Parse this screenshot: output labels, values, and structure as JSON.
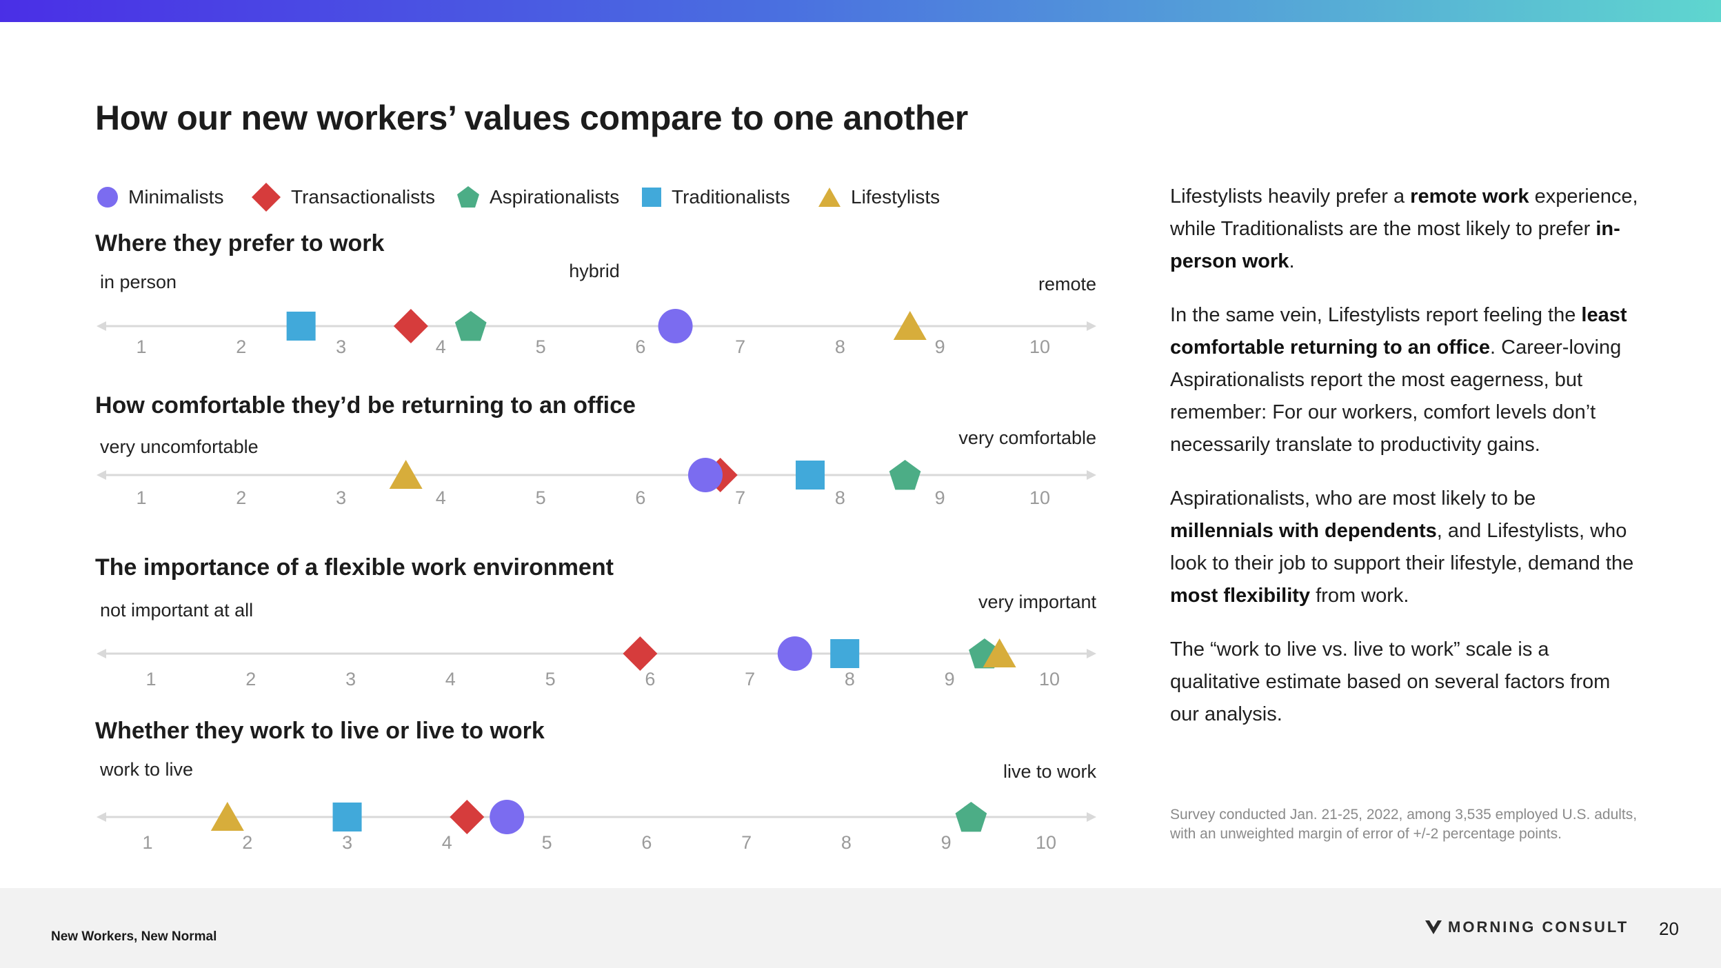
{
  "title": "How our new workers’ values compare to one another",
  "colors": {
    "minimalists": "#7b6cf0",
    "transactionalists": "#d63c3c",
    "aspirationalists": "#4cad86",
    "traditionalists": "#41a9da",
    "lifestylists": "#d7ad3b",
    "axis": "#d9d9d9",
    "tick_label": "#9a9a9a"
  },
  "legend": [
    {
      "key": "minimalists",
      "label": "Minimalists",
      "shape": "circle-icon"
    },
    {
      "key": "transactionalists",
      "label": "Transactionalists",
      "shape": "diamond-icon"
    },
    {
      "key": "aspirationalists",
      "label": "Aspirationalists",
      "shape": "pentagon-icon"
    },
    {
      "key": "traditionalists",
      "label": "Traditionalists",
      "shape": "square-icon"
    },
    {
      "key": "lifestylists",
      "label": "Lifestylists",
      "shape": "triangle-icon"
    }
  ],
  "chart_data": [
    {
      "type": "scatter",
      "title": "Where they prefer to work",
      "left_label": "in person",
      "mid_label": "hybrid",
      "right_label": "remote",
      "ticks": [
        "1",
        "2",
        "3",
        "4",
        "5",
        "6",
        "7",
        "8",
        "9",
        "10"
      ],
      "xlim": [
        1,
        10
      ],
      "points": [
        {
          "series": "traditionalists",
          "x": 2.6
        },
        {
          "series": "transactionalists",
          "x": 3.7
        },
        {
          "series": "aspirationalists",
          "x": 4.3
        },
        {
          "series": "minimalists",
          "x": 6.35
        },
        {
          "series": "lifestylists",
          "x": 8.7
        }
      ]
    },
    {
      "type": "scatter",
      "title": "How comfortable they’d be returning to an office",
      "left_label": "very uncomfortable",
      "right_label": "very comfortable",
      "ticks": [
        "1",
        "2",
        "3",
        "4",
        "5",
        "6",
        "7",
        "8",
        "9",
        "10"
      ],
      "xlim": [
        1,
        10
      ],
      "points": [
        {
          "series": "lifestylists",
          "x": 3.65
        },
        {
          "series": "transactionalists",
          "x": 6.8
        },
        {
          "series": "minimalists",
          "x": 6.65
        },
        {
          "series": "traditionalists",
          "x": 7.7
        },
        {
          "series": "aspirationalists",
          "x": 8.65
        }
      ]
    },
    {
      "type": "scatter",
      "title": "The importance of a flexible work environment",
      "left_label": "not important at all",
      "right_label": "very important",
      "ticks": [
        "1",
        "2",
        "3",
        "4",
        "5",
        "6",
        "7",
        "8",
        "9",
        "10"
      ],
      "xlim": [
        1,
        10
      ],
      "points": [
        {
          "series": "transactionalists",
          "x": 5.9
        },
        {
          "series": "minimalists",
          "x": 7.45
        },
        {
          "series": "traditionalists",
          "x": 7.95
        },
        {
          "series": "aspirationalists",
          "x": 9.35
        },
        {
          "series": "lifestylists",
          "x": 9.5
        }
      ]
    },
    {
      "type": "scatter",
      "title": "Whether they work to live or live to work",
      "left_label": "work to live",
      "right_label": "live to work",
      "ticks": [
        "1",
        "2",
        "3",
        "4",
        "5",
        "6",
        "7",
        "8",
        "9",
        "10"
      ],
      "xlim": [
        1,
        10
      ],
      "points": [
        {
          "series": "lifestylists",
          "x": 1.8
        },
        {
          "series": "traditionalists",
          "x": 3.0
        },
        {
          "series": "transactionalists",
          "x": 4.2
        },
        {
          "series": "minimalists",
          "x": 4.6
        },
        {
          "series": "aspirationalists",
          "x": 9.25
        }
      ]
    }
  ],
  "sidebar": {
    "p1": [
      {
        "t": "Lifestylists heavily prefer a "
      },
      {
        "t": "remote work",
        "b": true
      },
      {
        "t": " experience, while Traditionalists are the most likely to prefer "
      },
      {
        "t": "in-person work",
        "b": true
      },
      {
        "t": "."
      }
    ],
    "p2": [
      {
        "t": "In the same vein, Lifestylists report feeling the "
      },
      {
        "t": "least comfortable returning to an office",
        "b": true
      },
      {
        "t": ". Career-loving Aspirationalists report the most eagerness, but remember: For our workers, comfort levels don’t necessarily translate to productivity gains."
      }
    ],
    "p3": [
      {
        "t": "Aspirationalists, who are most likely to be "
      },
      {
        "t": "millennials with dependents",
        "b": true
      },
      {
        "t": ", and Lifestylists, who look to their job to support their lifestyle, demand the "
      },
      {
        "t": "most flexibility",
        "b": true
      },
      {
        "t": " from work."
      }
    ],
    "p4": [
      {
        "t": "The “work to live vs. live to work” scale is a qualitative estimate based on several factors from our analysis."
      }
    ]
  },
  "footnote": "Survey conducted Jan. 21-25, 2022, among 3,535 employed U.S. adults, with an unweighted margin of error of +/-2 percentage points.",
  "footer": {
    "left": "New Workers, New Normal",
    "brand": "MORNING CONSULT",
    "page": "20"
  }
}
